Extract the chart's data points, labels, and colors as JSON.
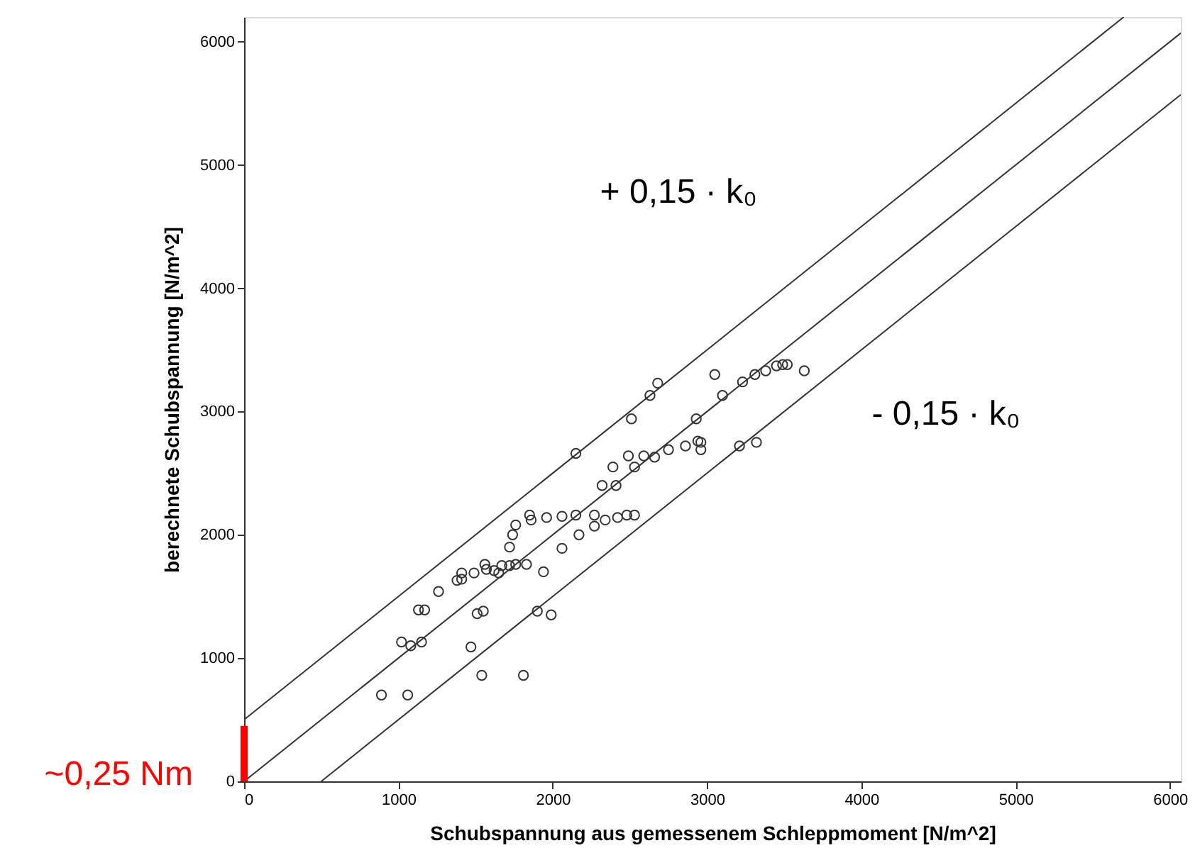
{
  "chart_data": {
    "type": "scatter",
    "xlabel": "Schubspannung aus gemessenem Schleppmoment [N/m^2]",
    "ylabel": "berechnete Schubspannung [N/m^2]",
    "xlim": [
      0,
      6070
    ],
    "ylim": [
      0,
      6200
    ],
    "xticks": [
      0,
      1000,
      2000,
      3000,
      4000,
      5000,
      6000
    ],
    "yticks": [
      0,
      1000,
      2000,
      3000,
      4000,
      5000,
      6000
    ],
    "grid": false,
    "series": [
      {
        "color": "#333333",
        "marker": "circle",
        "x": [
          890,
          1060,
          1020,
          1080,
          1130,
          1540,
          1810,
          1150,
          1170,
          1260,
          1470,
          1510,
          1550,
          1380,
          1410,
          1410,
          1490,
          1560,
          1570,
          1620,
          1650,
          1670,
          1720,
          1760,
          1830,
          1940,
          1900,
          1990,
          1720,
          1740,
          1760,
          1850,
          1860,
          1960,
          2060,
          2150,
          2060,
          2170,
          2270,
          2270,
          2340,
          2420,
          2480,
          2530,
          2320,
          2410,
          2390,
          2530,
          2490,
          2590,
          2660,
          2750,
          2860,
          2940,
          2960,
          2960,
          2150,
          2510,
          2930,
          2630,
          2680,
          3050,
          3100,
          3210,
          3230,
          3310,
          3380,
          3450,
          3490,
          3520,
          3630,
          3320
        ],
        "values": [
          700,
          700,
          1130,
          1100,
          1390,
          860,
          860,
          1130,
          1390,
          1540,
          1090,
          1360,
          1380,
          1630,
          1640,
          1690,
          1690,
          1760,
          1720,
          1710,
          1690,
          1750,
          1750,
          1760,
          1760,
          1700,
          1380,
          1350,
          1900,
          2000,
          2080,
          2160,
          2120,
          2140,
          2150,
          2160,
          1890,
          2000,
          2160,
          2070,
          2120,
          2140,
          2160,
          2160,
          2400,
          2400,
          2550,
          2550,
          2640,
          2640,
          2630,
          2690,
          2720,
          2760,
          2690,
          2750,
          2660,
          2940,
          2940,
          3130,
          3230,
          3300,
          3130,
          2720,
          3240,
          3300,
          3330,
          3370,
          3380,
          3380,
          3330,
          2750
        ]
      },
      {
        "type": "line",
        "color": "#333333",
        "x": [
          0,
          5700
        ],
        "values": [
          500,
          6200
        ]
      },
      {
        "type": "line",
        "color": "#333333",
        "x": [
          0,
          6070
        ],
        "values": [
          0,
          6070
        ]
      },
      {
        "type": "line",
        "color": "#333333",
        "x": [
          500,
          6070
        ],
        "values": [
          0,
          5570
        ]
      },
      {
        "type": "bar",
        "name": "~0,25 Nm",
        "color": "#ff0000",
        "x": [
          0
        ],
        "values": [
          450
        ]
      }
    ],
    "annotations": [
      "+ 0,15 · k₀",
      "- 0,15 · k₀"
    ]
  }
}
